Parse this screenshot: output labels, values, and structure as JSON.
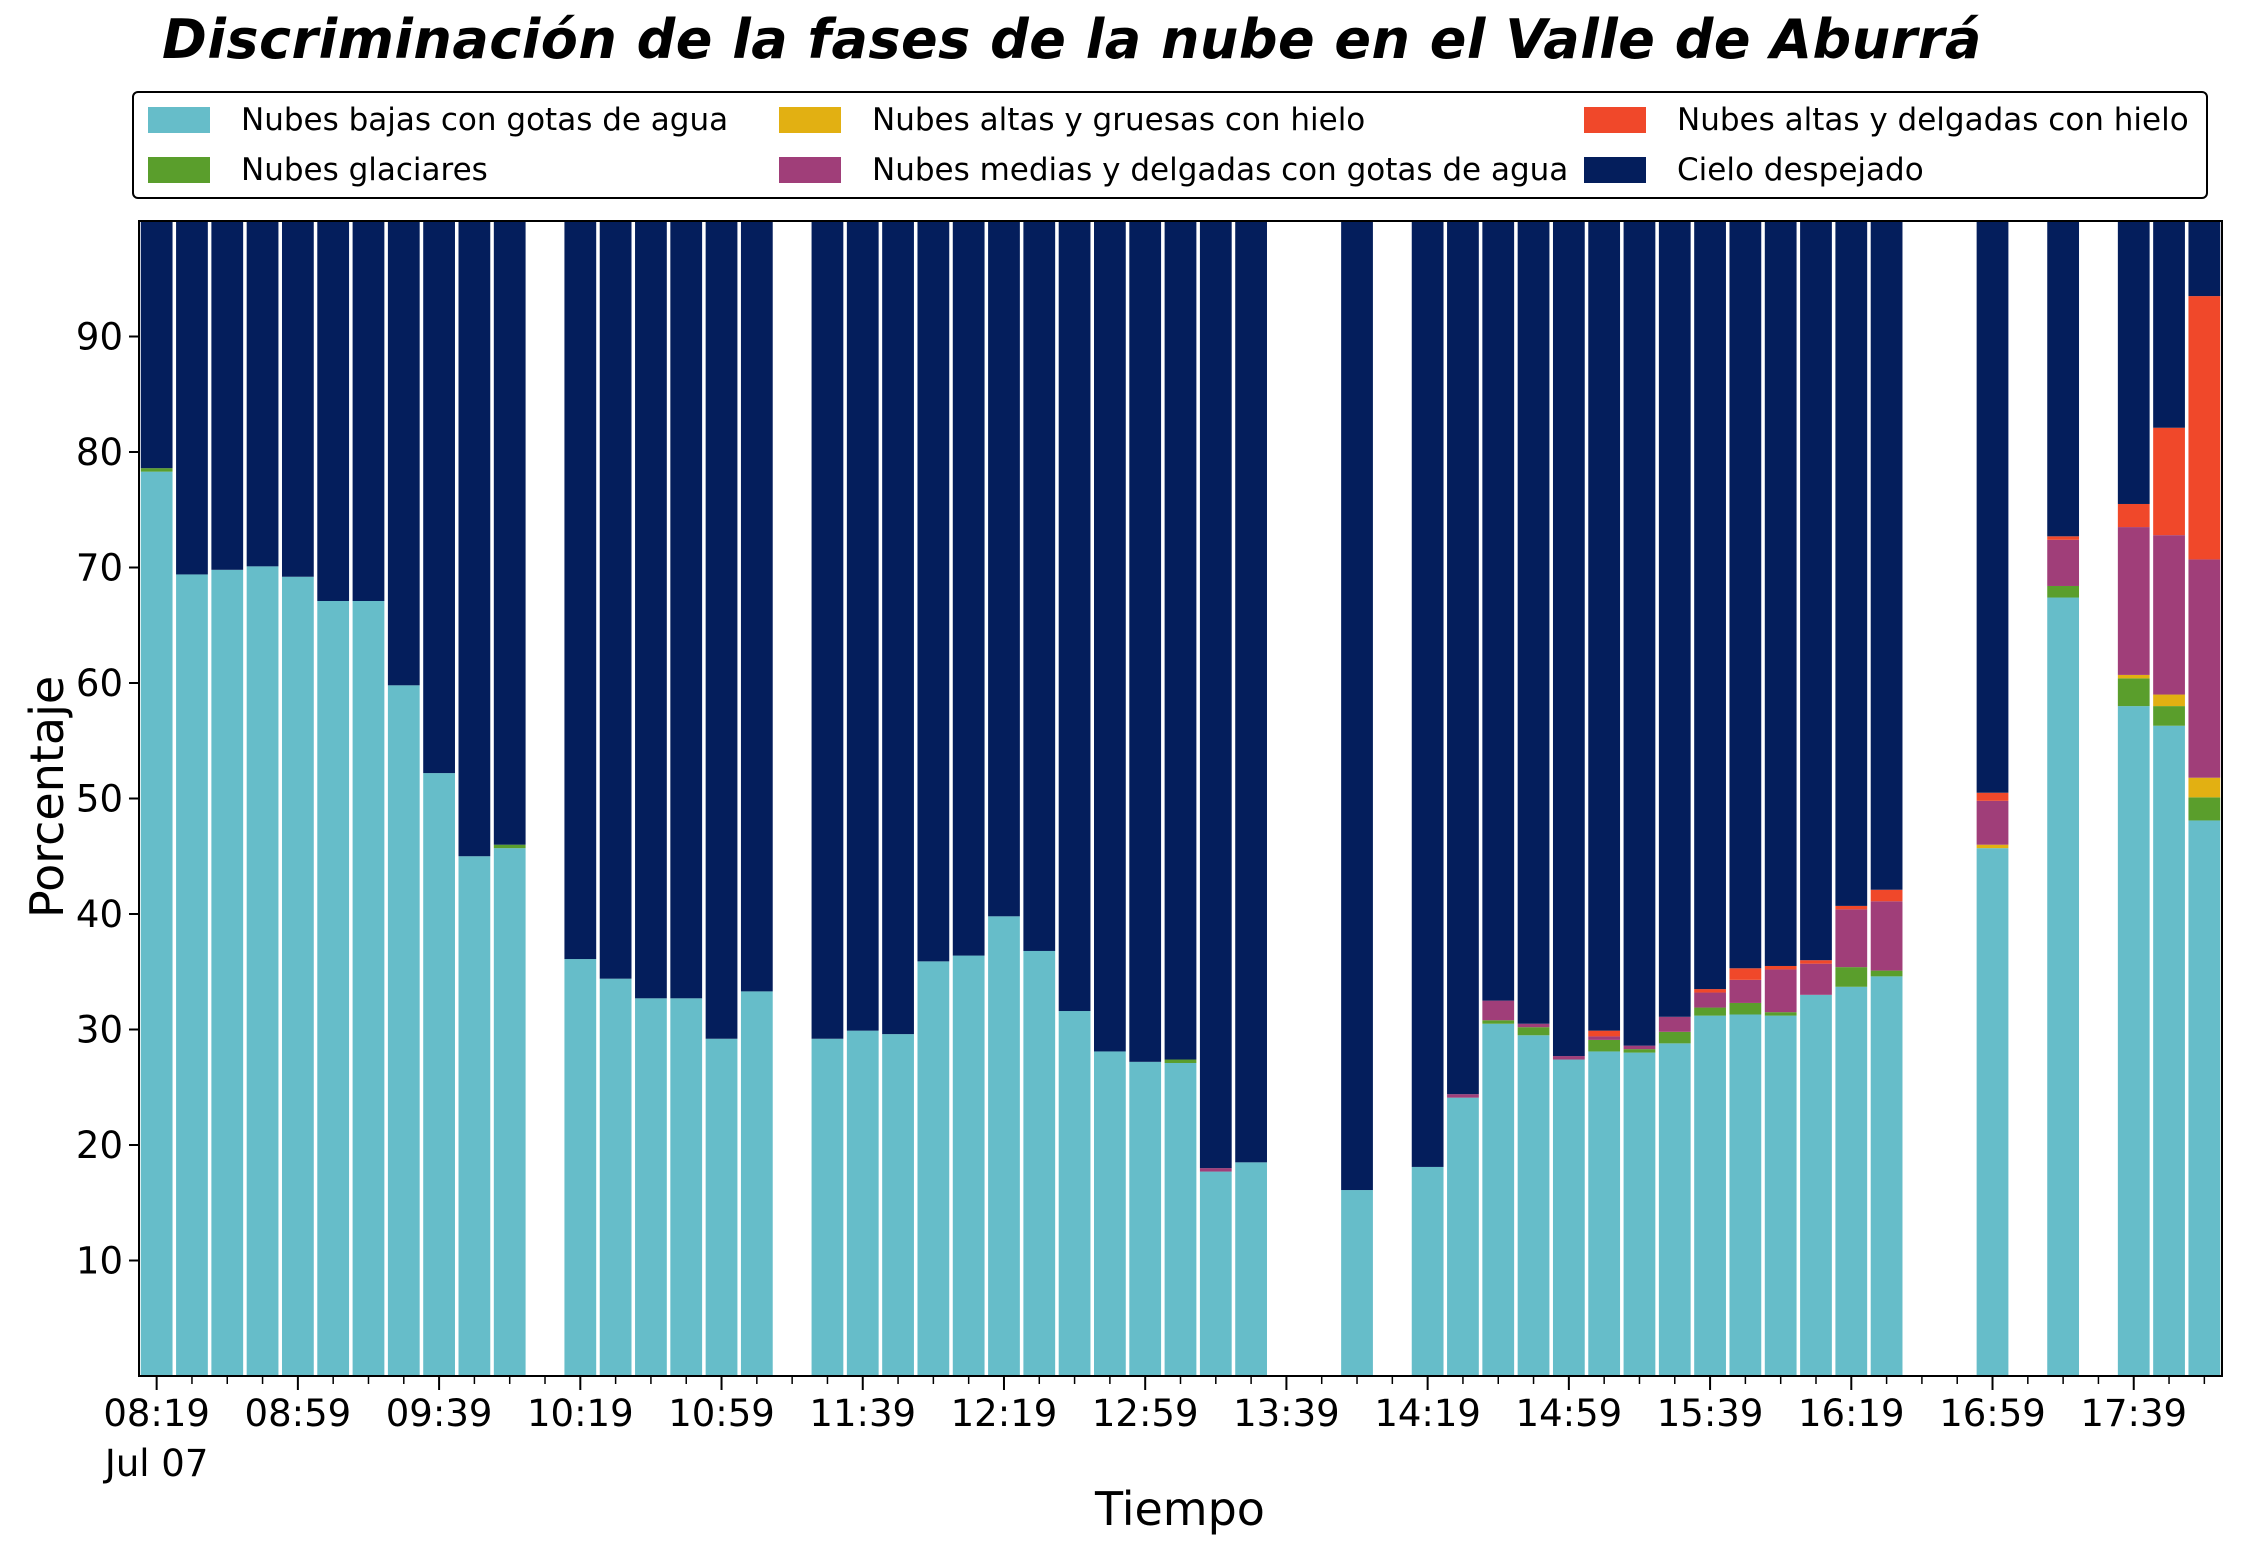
{
  "chart_data": {
    "type": "bar",
    "stacked": true,
    "title": "Discriminación de la fases de la nube en el Valle de Aburrá",
    "xlabel": "Tiempo",
    "ylabel": "Porcentaje",
    "ylim": [
      0,
      100
    ],
    "yticks": [
      10,
      20,
      30,
      40,
      50,
      60,
      70,
      80,
      90
    ],
    "grid": false,
    "legend_position": "top",
    "x_tick_labels": [
      "08:19\nJul 07",
      "08:59",
      "09:39",
      "10:19",
      "10:59",
      "11:39",
      "12:19",
      "12:59",
      "13:39",
      "14:19",
      "14:59",
      "15:39",
      "16:19",
      "16:59",
      "17:39"
    ],
    "categories": [
      "08:19",
      "08:29",
      "08:39",
      "08:49",
      "08:59",
      "09:09",
      "09:19",
      "09:29",
      "09:39",
      "09:49",
      "09:59",
      "10:09",
      "10:19",
      "10:29",
      "10:39",
      "10:49",
      "10:59",
      "11:09",
      "11:19",
      "11:29",
      "11:39",
      "11:49",
      "11:59",
      "12:09",
      "12:19",
      "12:29",
      "12:39",
      "12:49",
      "12:59",
      "13:09",
      "13:19",
      "13:29",
      "13:39",
      "13:49",
      "13:59",
      "14:09",
      "14:19",
      "14:29",
      "14:39",
      "14:49",
      "14:59",
      "15:09",
      "15:19",
      "15:29",
      "15:39",
      "15:49",
      "15:59",
      "16:09",
      "16:19",
      "16:29",
      "16:39",
      "16:49",
      "16:59",
      "17:09",
      "17:19",
      "17:29",
      "17:39",
      "17:49",
      "17:59"
    ],
    "series": [
      {
        "name": "Nubes bajas con gotas de agua",
        "color": "#66bdc9",
        "values": [
          78.3,
          69.4,
          69.8,
          70.1,
          69.2,
          67.1,
          67.1,
          59.8,
          52.2,
          45.0,
          45.7,
          null,
          36.1,
          34.4,
          32.7,
          32.7,
          29.2,
          33.3,
          null,
          29.2,
          29.9,
          29.6,
          35.9,
          36.4,
          39.8,
          36.8,
          31.6,
          28.1,
          27.2,
          27.1,
          17.7,
          18.5,
          null,
          null,
          16.1,
          null,
          18.1,
          24.1,
          30.5,
          29.5,
          27.4,
          28.1,
          28.0,
          28.8,
          31.2,
          31.3,
          31.2,
          33.0,
          33.7,
          34.6,
          null,
          null,
          45.7,
          null,
          67.4,
          null,
          58.0,
          56.3,
          48.1
        ]
      },
      {
        "name": "Nubes glaciares",
        "color": "#5a9e2c",
        "values": [
          0.3,
          0,
          0,
          0,
          0,
          0,
          0,
          0,
          0,
          0,
          0.3,
          null,
          0,
          0,
          0,
          0,
          0,
          0,
          null,
          0,
          0,
          0,
          0,
          0,
          0,
          0,
          0,
          0,
          0,
          0.3,
          0,
          0,
          null,
          null,
          0,
          null,
          0,
          0,
          0.3,
          0.7,
          0,
          1.0,
          0.3,
          1.0,
          0.7,
          1.0,
          0.3,
          0,
          1.7,
          0.5,
          null,
          null,
          0,
          null,
          1.0,
          null,
          2.4,
          1.7,
          2.0
        ]
      },
      {
        "name": "Nubes altas y gruesas con hielo",
        "color": "#e2b012",
        "values": [
          0,
          0,
          0,
          0,
          0,
          0,
          0,
          0,
          0,
          0,
          0,
          null,
          0,
          0,
          0,
          0,
          0,
          0,
          null,
          0,
          0,
          0,
          0,
          0,
          0,
          0,
          0,
          0,
          0,
          0,
          0,
          0,
          null,
          null,
          0,
          null,
          0,
          0,
          0,
          0,
          0,
          0,
          0,
          0,
          0,
          0,
          0,
          0,
          0,
          0,
          null,
          null,
          0.3,
          null,
          0,
          null,
          0.3,
          1.0,
          1.7
        ]
      },
      {
        "name": "Nubes medias y delgadas con gotas de agua",
        "color": "#a03e79",
        "values": [
          0,
          0,
          0,
          0,
          0,
          0,
          0,
          0,
          0,
          0,
          0,
          null,
          0,
          0,
          0,
          0,
          0,
          0,
          null,
          0,
          0,
          0,
          0,
          0,
          0,
          0,
          0,
          0,
          0,
          0,
          0.3,
          0,
          null,
          null,
          0,
          null,
          0,
          0.3,
          1.7,
          0.3,
          0.3,
          0.3,
          0.3,
          1.3,
          1.3,
          2.0,
          3.7,
          2.7,
          5.0,
          6.0,
          null,
          null,
          3.8,
          null,
          4.0,
          null,
          12.8,
          13.8,
          18.9
        ]
      },
      {
        "name": "Nubes altas y delgadas con hielo",
        "color": "#f0482a",
        "values": [
          0,
          0,
          0,
          0,
          0,
          0,
          0,
          0,
          0,
          0,
          0,
          null,
          0,
          0,
          0,
          0,
          0,
          0,
          null,
          0,
          0,
          0,
          0,
          0,
          0,
          0,
          0,
          0,
          0,
          0,
          0,
          0,
          null,
          null,
          0,
          null,
          0,
          0,
          0,
          0,
          0,
          0.5,
          0,
          0,
          0.3,
          1.0,
          0.3,
          0.3,
          0.3,
          1.0,
          null,
          null,
          0.7,
          null,
          0.3,
          null,
          2.0,
          9.3,
          22.8
        ]
      },
      {
        "name": "Cielo despejado",
        "color": "#041e5c",
        "values": [
          21.4,
          30.6,
          30.2,
          29.9,
          30.8,
          32.9,
          32.9,
          40.2,
          47.8,
          55.0,
          54.0,
          null,
          63.9,
          65.6,
          67.3,
          67.3,
          70.8,
          66.7,
          null,
          70.8,
          70.1,
          70.4,
          64.1,
          63.6,
          60.2,
          63.2,
          68.4,
          71.9,
          72.8,
          72.6,
          82.0,
          81.5,
          null,
          null,
          83.9,
          null,
          81.9,
          75.6,
          67.5,
          69.5,
          72.3,
          70.1,
          71.4,
          68.9,
          66.5,
          64.7,
          64.5,
          64.0,
          59.3,
          57.9,
          null,
          null,
          49.5,
          null,
          27.3,
          null,
          24.5,
          17.9,
          6.5
        ]
      }
    ]
  }
}
